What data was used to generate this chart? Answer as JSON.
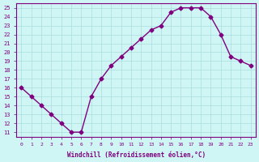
{
  "x": [
    0,
    1,
    2,
    3,
    4,
    5,
    6,
    7,
    8,
    9,
    10,
    11,
    12,
    13,
    14,
    15,
    16,
    17,
    18,
    19,
    20,
    21,
    22,
    23
  ],
  "y": [
    16,
    15,
    14,
    13,
    12,
    11,
    11,
    15,
    17,
    18.5,
    19.5,
    20.5,
    21.5,
    22.5,
    23,
    24.5,
    25,
    25,
    25,
    24,
    22,
    19.5,
    19,
    18.5
  ],
  "line_color": "#800080",
  "marker": "D",
  "marker_size": 2.5,
  "bg_color": "#cff5f5",
  "grid_color": "#aadddd",
  "xlabel": "Windchill (Refroidissement éolien,°C)",
  "xlabel_color": "#800080",
  "tick_color": "#800080",
  "ylim": [
    10.5,
    25.5
  ],
  "yticks": [
    11,
    12,
    13,
    14,
    15,
    16,
    17,
    18,
    19,
    20,
    21,
    22,
    23,
    24,
    25
  ],
  "xlim": [
    -0.5,
    23.5
  ],
  "xticks": [
    0,
    1,
    2,
    3,
    4,
    5,
    6,
    7,
    8,
    9,
    10,
    11,
    12,
    13,
    14,
    15,
    16,
    17,
    18,
    19,
    20,
    21,
    22,
    23
  ],
  "spine_color": "#800080"
}
